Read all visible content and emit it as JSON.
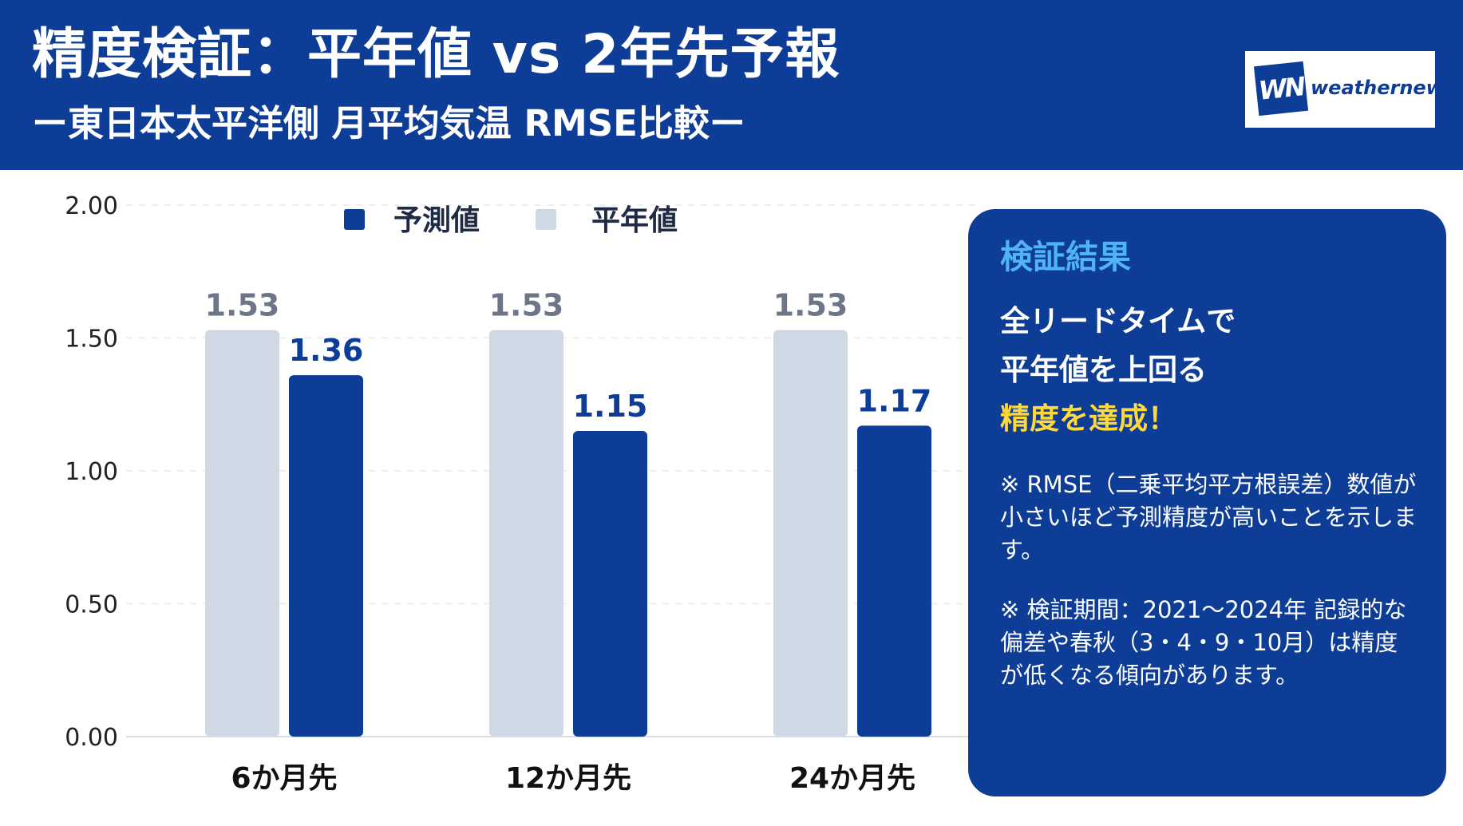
{
  "header": {
    "title": "精度検証：平年値 vs 2年先予報",
    "subtitle": "ー東日本太平洋側 月平均気温 RMSE比較ー"
  },
  "logo": {
    "mark": "WN",
    "text": "weathernews"
  },
  "legend": [
    {
      "label": "予測値",
      "color": "#0d3d96"
    },
    {
      "label": "平年値",
      "color": "#cfd9e6"
    }
  ],
  "chart_data": {
    "type": "bar",
    "categories": [
      "6か月先",
      "12か月先",
      "24か月先"
    ],
    "series": [
      {
        "name": "平年値",
        "values": [
          1.53,
          1.53,
          1.53
        ],
        "color": "#cfd9e6",
        "label_color": "#6d7686"
      },
      {
        "name": "予測値",
        "values": [
          1.36,
          1.15,
          1.17
        ],
        "color": "#0d3d96",
        "label_color": "#0d3d96"
      }
    ],
    "yticks": [
      "0.00",
      "0.50",
      "1.00",
      "1.50",
      "2.00"
    ],
    "ylim": [
      0,
      2
    ],
    "grid": true,
    "legend_position": "top"
  },
  "panel": {
    "title": "検証結果",
    "lines": [
      "全リードタイムで",
      "平年値を上回る",
      "精度を達成！"
    ],
    "notes": [
      "※ RMSE（二乗平均平方根誤差）数値が小さいほど予測精度が高いことを示します。",
      "※ 検証期間：2021〜2024年 記録的な偏差や春秋（3・4・9・10月）は精度が低くなる傾向があります。"
    ]
  }
}
